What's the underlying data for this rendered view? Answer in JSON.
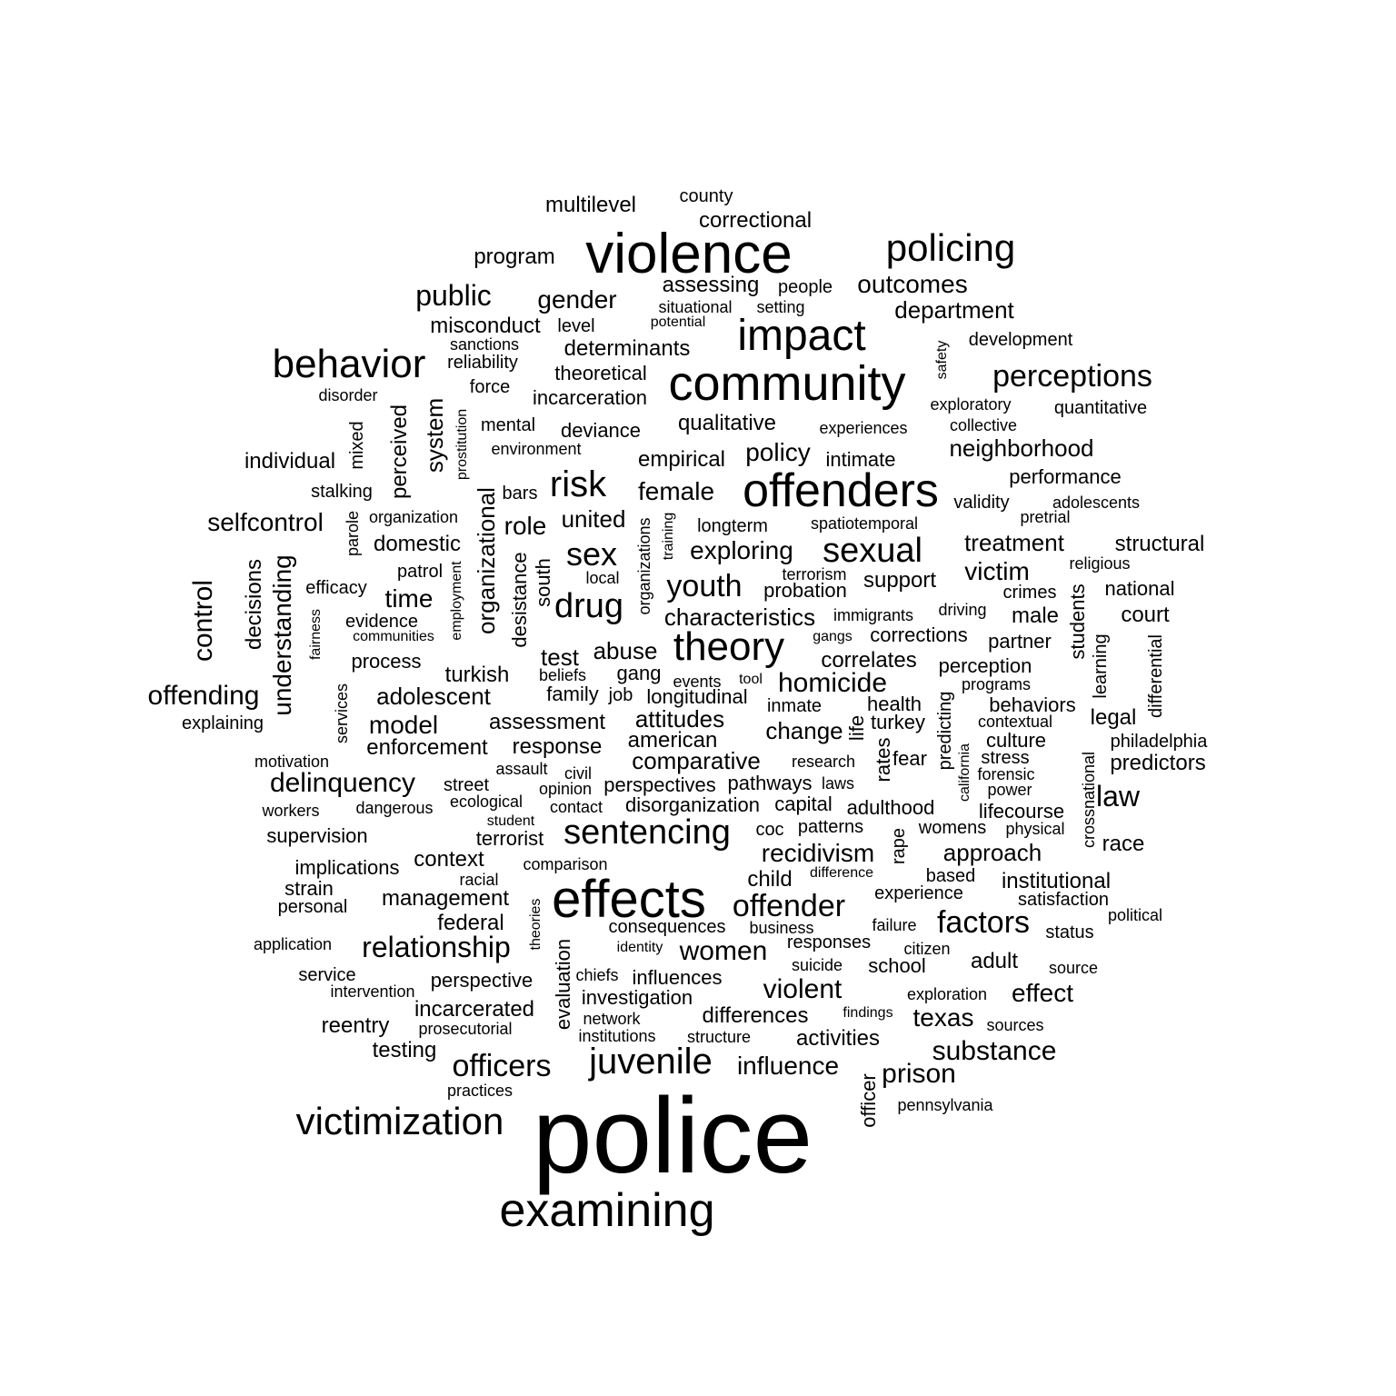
{
  "words": [
    "police",
    "examining",
    "violence",
    "effects",
    "community",
    "offenders",
    "impact",
    "policing",
    "behavior",
    "theory",
    "victimization",
    "juvenile",
    "sentencing",
    "perceptions",
    "sexual",
    "risk",
    "drug",
    "sex",
    "youth",
    "relationship",
    "officers",
    "offender",
    "factors",
    "public",
    "gender",
    "outcomes",
    "homicide",
    "recidivism",
    "delinquency",
    "offending",
    "violent",
    "women",
    "prison",
    "substance",
    "selfcontrol",
    "department",
    "exploring",
    "neighborhood",
    "treatment",
    "victim",
    "characteristics",
    "adolescent",
    "model",
    "enforcement",
    "assessment",
    "female",
    "united",
    "role",
    "abuse",
    "law",
    "time",
    "control",
    "understanding",
    "system",
    "perceived",
    "organizational",
    "desistance",
    "organizations",
    "training",
    "south",
    "multilevel",
    "county",
    "correctional",
    "program",
    "assessing",
    "people",
    "setting",
    "situational",
    "potential",
    "misconduct",
    "level",
    "determinants",
    "sanctions",
    "reliability",
    "theoretical",
    "development",
    "safety",
    "disorder",
    "force",
    "incarceration",
    "exploratory",
    "quantitative",
    "mental",
    "deviance",
    "qualitative",
    "experiences",
    "collective",
    "environment",
    "empirical",
    "policy",
    "intimate",
    "individual",
    "mixed",
    "prostitution",
    "performance",
    "validity",
    "adolescents",
    "stalking",
    "bars",
    "pretrial",
    "organization",
    "longterm",
    "spatiotemporal",
    "parole",
    "domestic",
    "structural",
    "religious",
    "patrol",
    "local",
    "terrorism",
    "support",
    "national",
    "efficacy",
    "probation",
    "crimes",
    "evidence",
    "immigrants",
    "driving",
    "male",
    "court",
    "decisions",
    "fairness",
    "employment",
    "communities",
    "gangs",
    "corrections",
    "partner",
    "students",
    "learning",
    "differential",
    "process",
    "test",
    "correlates",
    "perception",
    "beliefs",
    "gang",
    "turkish",
    "events",
    "tool",
    "programs",
    "services",
    "family",
    "job",
    "longitudinal",
    "inmate",
    "health",
    "behaviors",
    "explaining",
    "attitudes",
    "life",
    "turkey",
    "contextual",
    "legal",
    "american",
    "change",
    "motivation",
    "response",
    "comparative",
    "research",
    "rates",
    "fear",
    "california",
    "culture",
    "stress",
    "philadelphia",
    "assault",
    "civil",
    "predicting",
    "crossnational",
    "predictors",
    "forensic",
    "street",
    "opinion",
    "perspectives",
    "pathways",
    "laws",
    "power",
    "workers",
    "dangerous",
    "ecological",
    "contact",
    "disorganization",
    "capital",
    "adulthood",
    "lifecourse",
    "student",
    "supervision",
    "terrorist",
    "coc",
    "patterns",
    "womens",
    "physical",
    "race",
    "implications",
    "context",
    "comparison",
    "rape",
    "approach",
    "strain",
    "racial",
    "child",
    "difference",
    "based",
    "institutional",
    "personal",
    "management",
    "experience",
    "satisfaction",
    "theories",
    "federal",
    "consequences",
    "business",
    "failure",
    "political",
    "application",
    "identity",
    "citizen",
    "status",
    "evaluation",
    "responses",
    "service",
    "suicide",
    "school",
    "adult",
    "source",
    "intervention",
    "perspective",
    "chiefs",
    "influences",
    "exploration",
    "effect",
    "incarcerated",
    "investigation",
    "network",
    "findings",
    "reentry",
    "prosecutorial",
    "differences",
    "texas",
    "sources",
    "institutions",
    "structure",
    "activities",
    "testing",
    "influence",
    "officer",
    "practices",
    "pennsylvania"
  ]
}
